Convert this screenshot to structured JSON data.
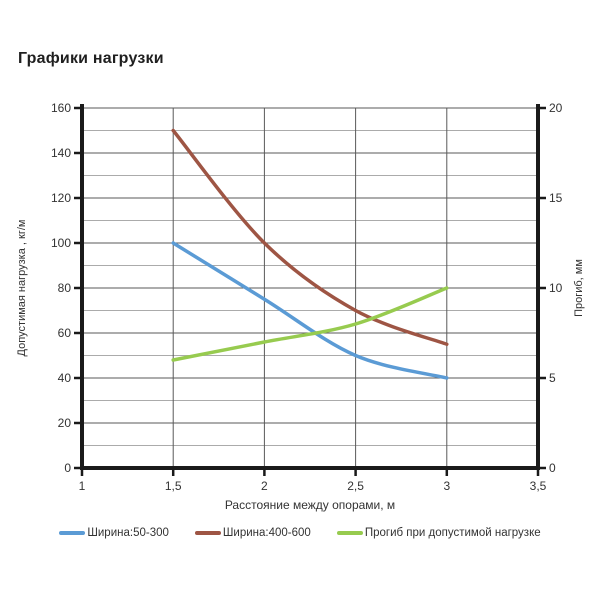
{
  "title": "Графики нагрузки",
  "chart_data": {
    "type": "line",
    "x": [
      1.5,
      2,
      2.5,
      3
    ],
    "series": [
      {
        "name": "Ширина:50-300",
        "axis": "left",
        "color": "#5B9BD5",
        "values": [
          100,
          75,
          50,
          40
        ]
      },
      {
        "name": "Ширина:400-600",
        "axis": "left",
        "color": "#9E5544",
        "values": [
          150,
          100,
          70,
          55
        ]
      },
      {
        "name": "Прогиб при допустимой нагрузке",
        "axis": "right",
        "color": "#97CB4F",
        "values": [
          6,
          7,
          8,
          10
        ]
      }
    ],
    "x_axis": {
      "label": "Расстояние между опорами, м",
      "min": 1,
      "max": 3.5,
      "tick_step": 0.5,
      "tick_labels": [
        "1",
        "1,5",
        "2",
        "2,5",
        "3",
        "3,5"
      ]
    },
    "y_left": {
      "label": "Допустимая нагрузка , кг/м",
      "min": 0,
      "max": 160,
      "tick_step": 20,
      "tick_labels": [
        "0",
        "20",
        "40",
        "60",
        "80",
        "100",
        "120",
        "140",
        "160"
      ]
    },
    "y_right": {
      "label": "Прогиб, мм",
      "min": 0,
      "max": 20,
      "tick_step": 5,
      "tick_labels": [
        "0",
        "5",
        "10",
        "15",
        "20"
      ]
    },
    "grid": {
      "h_minor_step": 10,
      "major_color": "#595959",
      "minor_color": "#ABABAB",
      "vline_color": "#595959",
      "vlines_x": [
        1.5,
        2,
        2.5,
        3
      ]
    },
    "legend_position": "bottom"
  },
  "colors": {
    "axis": "#1A1A1A",
    "tick_text": "#333333",
    "title_text": "#1F1F1F",
    "background": "#FFFFFF"
  }
}
